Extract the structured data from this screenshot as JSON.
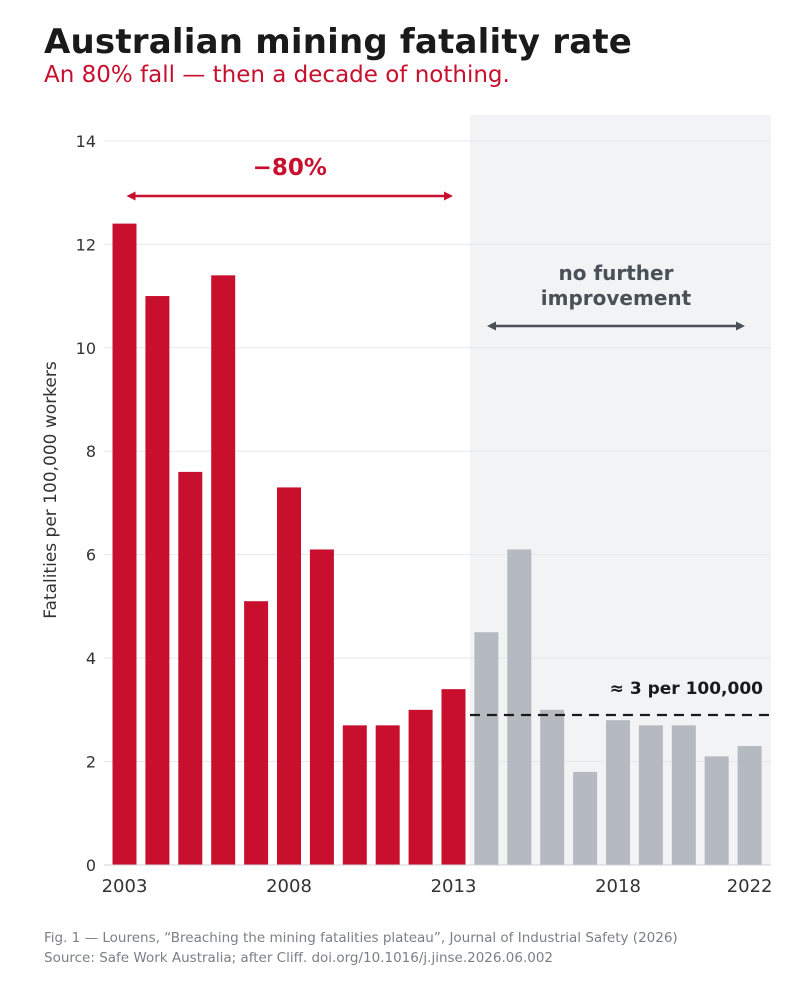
{
  "title": "Australian mining fatality rate",
  "subtitle": "An 80% fall — then a decade of nothing.",
  "colors": {
    "decline": "#c8102e",
    "plateau": "#b5bac1",
    "plateau_band": "#f1f3f5",
    "annotation_gray": "#4a5057",
    "reference_line": "#1a1a1a"
  },
  "chart_data": {
    "type": "bar",
    "categories": [
      "2003",
      "2004",
      "2005",
      "2006",
      "2007",
      "2008",
      "2009",
      "2010",
      "2011",
      "2012",
      "2013",
      "2014",
      "2015",
      "2016",
      "2017",
      "2018",
      "2019",
      "2020",
      "2021",
      "2022"
    ],
    "values": [
      12.4,
      11.0,
      7.6,
      11.4,
      5.1,
      7.3,
      6.1,
      2.7,
      2.7,
      3.0,
      3.4,
      4.5,
      6.1,
      3.0,
      1.8,
      2.8,
      2.7,
      2.7,
      2.1,
      2.3
    ],
    "highlight_through": "2013",
    "ylabel": "Fatalities per 100,000 workers",
    "xlabel": "",
    "ylim": [
      0,
      14.5
    ],
    "yticks": [
      0,
      2,
      4,
      6,
      8,
      10,
      12,
      14
    ],
    "xticks": [
      "2003",
      "2008",
      "2013",
      "2018",
      "2022"
    ],
    "grid": "horizontal",
    "shaded_region": {
      "from": "2014",
      "to": "2022"
    },
    "reference_line": {
      "value": 2.9,
      "from": "2014",
      "to": "2022",
      "label": "≈ 3 per 100,000"
    },
    "annotations": [
      {
        "text": "−80%",
        "from": "2003",
        "to": "2013"
      },
      {
        "text_lines": [
          "no further",
          "improvement"
        ],
        "from": "2014",
        "to": "2022"
      }
    ]
  },
  "footer": {
    "line1": "Fig. 1 — Lourens, “Breaching the mining fatalities plateau”, Journal of Industrial Safety (2026)",
    "line2": "Source: Safe Work Australia; after Cliff.   doi.org/10.1016/j.jinse.2026.06.002"
  }
}
